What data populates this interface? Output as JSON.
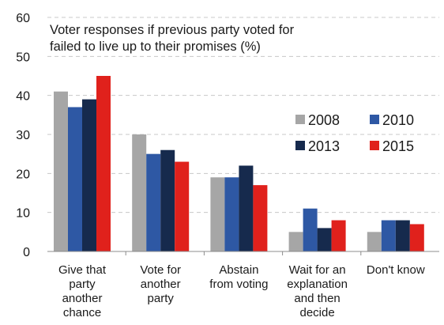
{
  "chart_data": {
    "type": "bar",
    "title": "Voter responses if previous party voted for failed to live up to their promises (%)",
    "title_lines": [
      "Voter responses if previous party voted for",
      "failed to live up to their promises (%)"
    ],
    "categories": [
      "Give that party another chance",
      "Vote for another party",
      "Abstain from voting",
      "Wait for an explanation and then decide",
      "Don't know"
    ],
    "category_lines": [
      [
        "Give that",
        "party",
        "another",
        "chance"
      ],
      [
        "Vote for",
        "another",
        "party"
      ],
      [
        "Abstain",
        "from voting"
      ],
      [
        "Wait for an",
        "explanation",
        "and then",
        "decide"
      ],
      [
        "Don't know"
      ]
    ],
    "series": [
      {
        "name": "2008",
        "values": [
          41,
          30,
          19,
          5,
          5
        ]
      },
      {
        "name": "2010",
        "values": [
          37,
          25,
          19,
          11,
          8
        ]
      },
      {
        "name": "2013",
        "values": [
          39,
          26,
          22,
          6,
          8
        ]
      },
      {
        "name": "2015",
        "values": [
          45,
          23,
          17,
          8,
          7
        ]
      }
    ],
    "colors": [
      "#a6a6a6",
      "#2e58a4",
      "#162a4d",
      "#e0211c"
    ],
    "ylim": [
      0,
      60
    ],
    "yticks": [
      0,
      10,
      20,
      30,
      40,
      50,
      60
    ],
    "xlabel": "",
    "ylabel": "",
    "grid": true,
    "legend_position": "right"
  }
}
